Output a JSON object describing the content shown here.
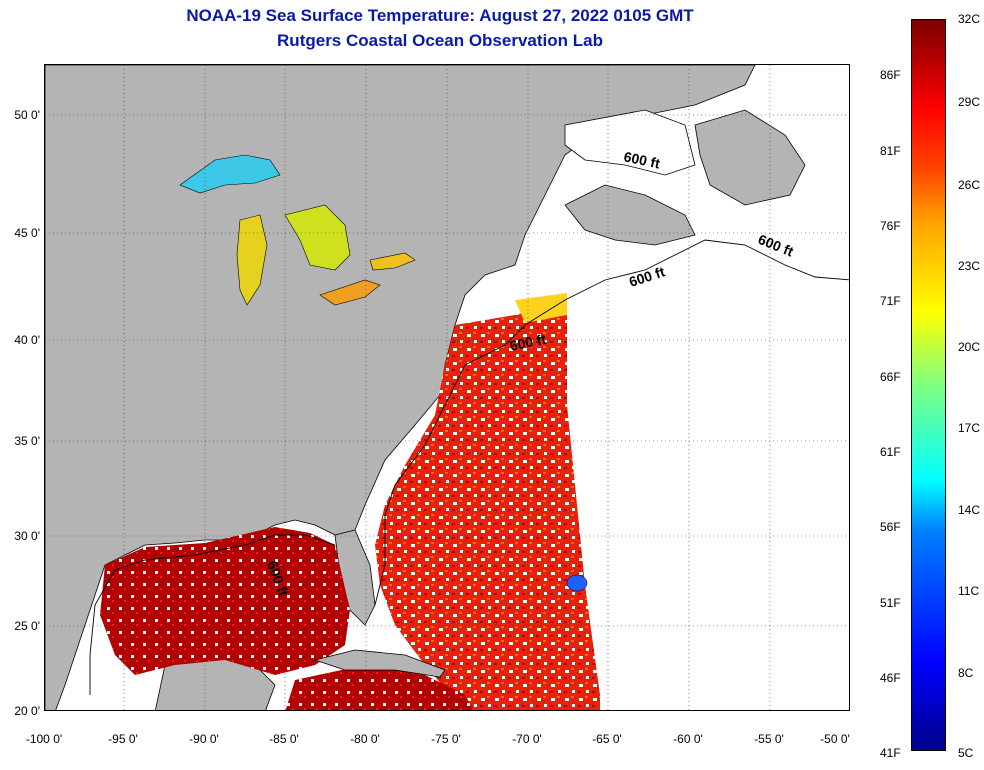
{
  "title": {
    "line1": "NOAA-19 Sea Surface Temperature:  August 27, 2022 0105 GMT",
    "line2": "Rutgers Coastal Ocean Observation Lab"
  },
  "lat_labels": [
    "50 0'",
    "45 0'",
    "40 0'",
    "35 0'",
    "30 0'",
    "25 0'",
    "20 0'"
  ],
  "lon_labels": [
    "-100 0'",
    "-95 0'",
    "-90 0'",
    "-85 0'",
    "-80 0'",
    "-75 0'",
    "-70 0'",
    "-65 0'",
    "-60 0'",
    "-55 0'",
    "-50 0'"
  ],
  "contour_labels": [
    "600 ft",
    "600 ft",
    "600 ft",
    "600 ft",
    "600 ft"
  ],
  "colorbar": {
    "fahrenheit": [
      "86F",
      "81F",
      "76F",
      "71F",
      "66F",
      "61F",
      "56F",
      "51F",
      "46F",
      "41F"
    ],
    "celsius": [
      "32C",
      "29C",
      "26C",
      "23C",
      "20C",
      "17C",
      "14C",
      "11C",
      "8C",
      "5C"
    ]
  },
  "colors": {
    "land": "#b4b4b4",
    "warm": "#e8200c",
    "hot": "#b30000",
    "lake_yellow": "#e6d21e",
    "lake_cyan": "#3cc8e6",
    "title": "#0a1aa8"
  }
}
